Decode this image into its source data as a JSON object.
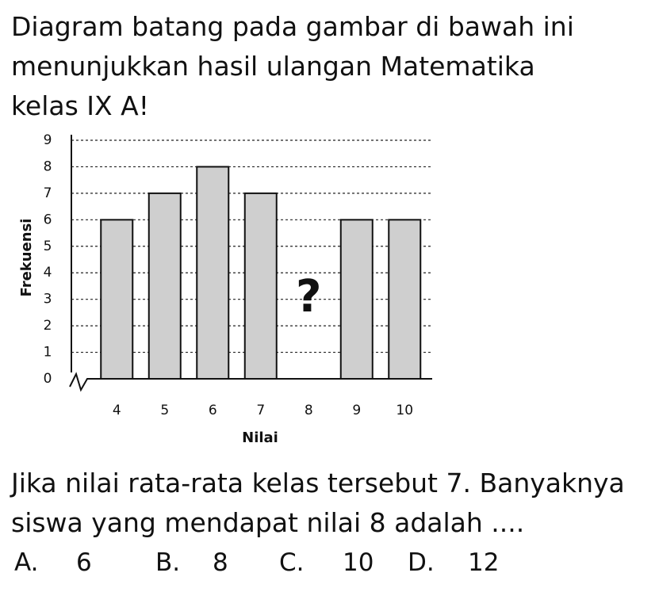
{
  "intro": [
    "Diagram batang pada gambar di bawah ini",
    "menunjukkan hasil ulangan Matematika",
    "kelas IX A!"
  ],
  "chart_data": {
    "type": "bar",
    "categories": [
      "4",
      "5",
      "6",
      "7",
      "8",
      "9",
      "10"
    ],
    "values": [
      6,
      7,
      8,
      7,
      null,
      6,
      6
    ],
    "color": "#cfcfcf",
    "x_label": "Nilai",
    "y_label": "Frekuensi",
    "annotation": "?",
    "ylim": [
      0,
      9
    ],
    "yticks": [
      0,
      1,
      2,
      3,
      4,
      5,
      6,
      7,
      8,
      9
    ],
    "grid": true
  },
  "question": [
    "Jika nilai rata-rata kelas tersebut 7. Banyaknya",
    "siswa yang mendapat nilai 8 adalah ...."
  ],
  "options": [
    {
      "label": "A.",
      "text": "6"
    },
    {
      "label": "B.",
      "text": "8"
    },
    {
      "label": "C.",
      "text": "10"
    },
    {
      "label": "D.",
      "text": "12"
    }
  ]
}
